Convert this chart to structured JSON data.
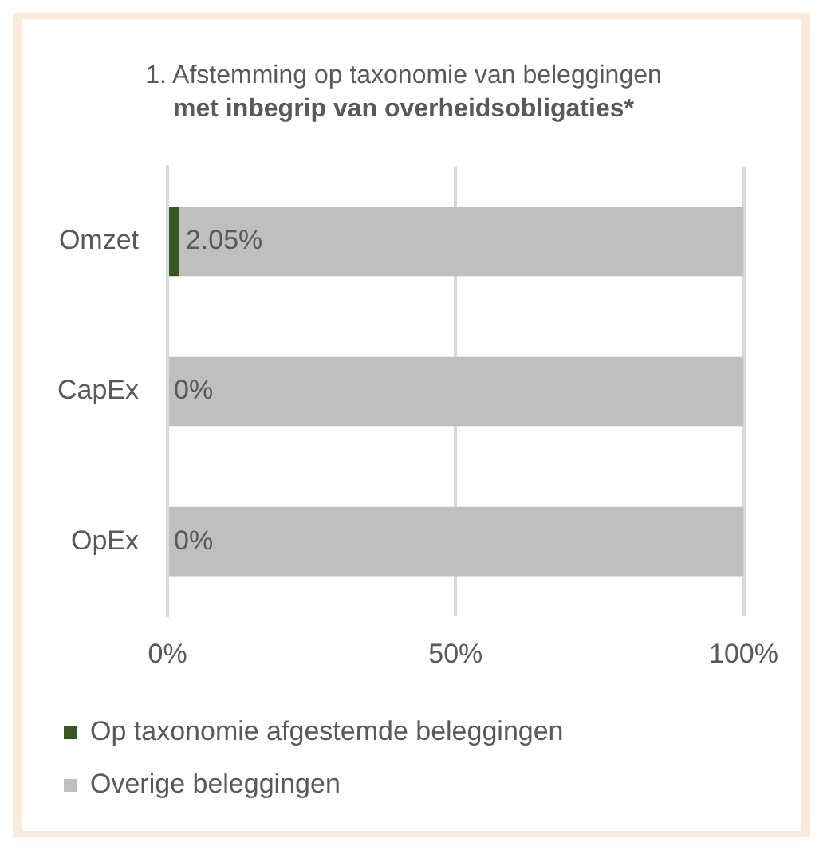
{
  "chart_data": {
    "type": "bar",
    "orientation": "horizontal",
    "stacked": true,
    "title": "1. Afstemming op taxonomie van beleggingen",
    "subtitle": "met inbegrip van overheidsobligaties*",
    "categories": [
      "Omzet",
      "CapEx",
      "OpEx"
    ],
    "series": [
      {
        "name": "Op taxonomie afgestemde beleggingen",
        "color": "#375623",
        "values": [
          2.05,
          0,
          0
        ],
        "value_labels": [
          "2.05%",
          null,
          null
        ]
      },
      {
        "name": "Overige beleggingen",
        "color": "#bfbfbf",
        "values": [
          97.95,
          100,
          100
        ]
      }
    ],
    "xlim": [
      0,
      100
    ],
    "xticks": [
      {
        "value": 0,
        "label": "0%"
      },
      {
        "value": 50,
        "label": "50%"
      },
      {
        "value": 100,
        "label": "100%"
      }
    ],
    "annotations": [
      {
        "text": "0%",
        "x": 0,
        "y": "CapEx"
      },
      {
        "text": "0%",
        "x": 0,
        "y": "OpEx"
      }
    ],
    "grid": "x",
    "legend": "bottom"
  }
}
